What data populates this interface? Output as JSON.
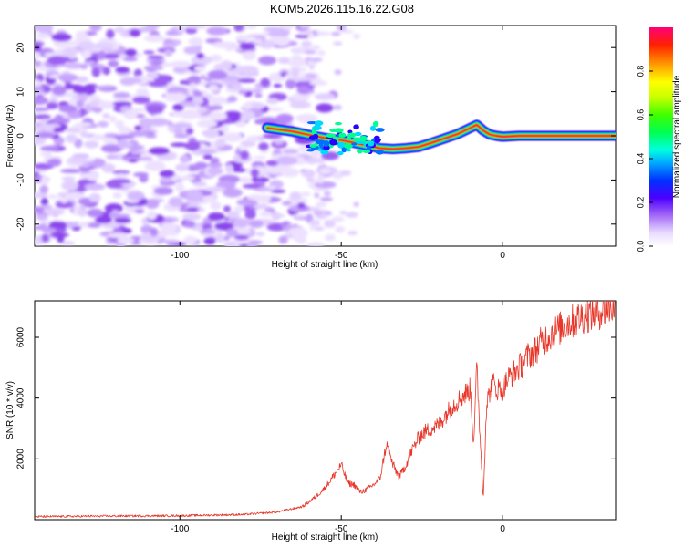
{
  "title": "KOM5.2026.115.16.22.G08",
  "chart_data": [
    {
      "type": "heatmap",
      "name": "spectrogram",
      "xlabel": "Height of straight line (km)",
      "ylabel": "Frequency (Hz)",
      "xlim": [
        -145,
        35
      ],
      "ylim": [
        -25,
        25
      ],
      "xticks": [
        -100,
        -50,
        0
      ],
      "yticks": [
        -20,
        -10,
        0,
        10,
        20
      ],
      "colorbar": {
        "label": "Normalized spectral amplitude",
        "range": [
          0,
          1
        ],
        "ticks": [
          0.0,
          0.2,
          0.4,
          0.6,
          0.8
        ],
        "colors": [
          "#ffffff",
          "#c8a0ff",
          "#7a2be8",
          "#0000ff",
          "#00ffff",
          "#00ff44",
          "#ffff00",
          "#ff8000",
          "#ff0000",
          "#ff0077"
        ]
      },
      "signal_ridge": {
        "x": [
          -73,
          -65,
          -60,
          -55,
          -50,
          -46,
          -42,
          -38,
          -34,
          -30,
          -26,
          -22,
          -18,
          -14,
          -10,
          -8,
          -6,
          -4,
          -2,
          0,
          5,
          10,
          20,
          35
        ],
        "freq": [
          1.8,
          1.0,
          0.2,
          -0.5,
          -1.0,
          -1.6,
          -2.2,
          -2.8,
          -3.0,
          -2.8,
          -2.5,
          -1.6,
          -0.6,
          0.4,
          1.8,
          2.5,
          1.2,
          0.3,
          0.0,
          -0.2,
          0.0,
          0.0,
          0.0,
          0.0
        ]
      },
      "noise_region_x": [
        -145,
        -62
      ]
    },
    {
      "type": "line",
      "name": "snr",
      "xlabel": "Height of straight line (km)",
      "ylabel": "SNR (10 * v/v)",
      "xlim": [
        -145,
        35
      ],
      "ylim": [
        0,
        7200
      ],
      "xticks": [
        -100,
        -50,
        0
      ],
      "yticks": [
        2000,
        4000,
        6000
      ],
      "color": "#e8372a",
      "series": [
        {
          "name": "SNR",
          "x": [
            -145,
            -120,
            -100,
            -80,
            -70,
            -62,
            -58,
            -55,
            -52,
            -50,
            -48,
            -46,
            -44,
            -42,
            -40,
            -38,
            -36,
            -34,
            -32,
            -30,
            -28,
            -26,
            -24,
            -22,
            -20,
            -18,
            -16,
            -14,
            -12,
            -10,
            -9,
            -8,
            -7,
            -6,
            -5,
            -4,
            -3,
            -2,
            0,
            2,
            4,
            6,
            8,
            10,
            12,
            15,
            20,
            25,
            30,
            35
          ],
          "y": [
            100,
            120,
            130,
            170,
            250,
            430,
            750,
            1050,
            1500,
            1800,
            1200,
            1150,
            900,
            1000,
            1150,
            1350,
            2500,
            1800,
            1400,
            1800,
            2300,
            2700,
            2900,
            3000,
            3100,
            3400,
            3700,
            3900,
            4100,
            4300,
            2500,
            5000,
            2800,
            650,
            3800,
            4200,
            4500,
            4300,
            4300,
            4700,
            4900,
            5100,
            5400,
            5550,
            5850,
            6100,
            6450,
            6700,
            6850,
            7050
          ]
        }
      ]
    }
  ]
}
